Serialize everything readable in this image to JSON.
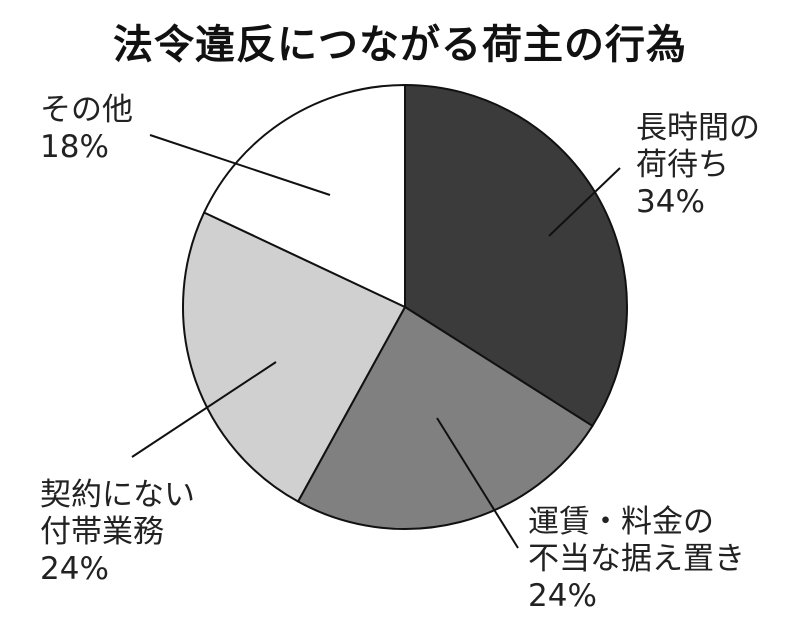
{
  "chart_data": {
    "type": "pie",
    "title": "法令違反につながる荷主の行為",
    "unit": "%",
    "slices": [
      {
        "label_lines": [
          "長時間の",
          "荷待ち"
        ],
        "value": 34,
        "value_label": "34%",
        "color": "#3b3b3b"
      },
      {
        "label_lines": [
          "運賃・料金の",
          "不当な据え置き"
        ],
        "value": 24,
        "value_label": "24%",
        "color": "#808080"
      },
      {
        "label_lines": [
          "契約にない",
          "付帯業務"
        ],
        "value": 24,
        "value_label": "24%",
        "color": "#d0d0d0"
      },
      {
        "label_lines": [
          "その他"
        ],
        "value": 18,
        "value_label": "18%",
        "color": "#ffffff"
      }
    ],
    "start": "12 o'clock",
    "direction": "clockwise",
    "stroke_color": "#111111",
    "background": "#ffffff"
  }
}
